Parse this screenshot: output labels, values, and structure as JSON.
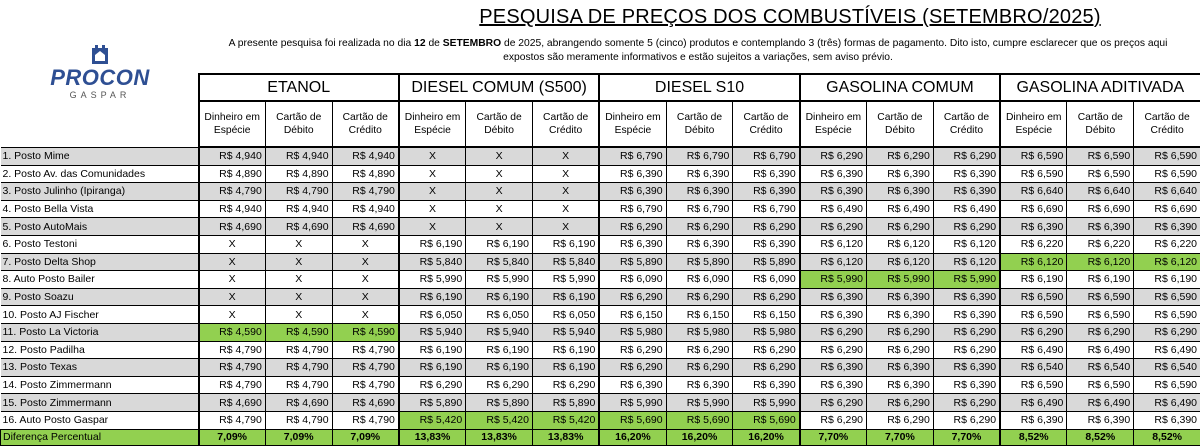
{
  "title": "PESQUISA DE PREÇOS DOS COMBUSTÍVEIS (SETEMBRO/2025)",
  "intro_line1_pre": "A presente pesquisa foi realizada no dia ",
  "intro_day": "12",
  "intro_mid": " de ",
  "intro_month": "SETEMBRO",
  "intro_line1_post": " de 2025, abrangendo somente 5 (cinco) produtos e contemplando 3 (três) formas de pagamento. Dito isto, cumpre esclarecer que os preços aqui",
  "intro_line2": "expostos são meramente informativos e estão sujeitos a variações, sem aviso prévio.",
  "logo": {
    "name": "PROCON",
    "city": "GASPAR"
  },
  "fuels": [
    "ETANOL",
    "DIESEL COMUM (S500)",
    "DIESEL S10",
    "GASOLINA COMUM",
    "GASOLINA ADITIVADA"
  ],
  "payment_line1": [
    "Dinheiro em",
    "Cartão de",
    "Cartão de"
  ],
  "payment_line2": [
    "Espécie",
    "Débito",
    "Crédito"
  ],
  "rows": [
    {
      "name": "1. Posto Mime",
      "prices": [
        "R$ 4,940",
        "X",
        "R$ 6,790",
        "R$ 6,290",
        "R$ 6,590"
      ]
    },
    {
      "name": "2. Posto Av. das Comunidades",
      "prices": [
        "R$ 4,890",
        "X",
        "R$ 6,390",
        "R$ 6,390",
        "R$ 6,590"
      ]
    },
    {
      "name": "3. Posto Julinho (Ipiranga)",
      "prices": [
        "R$ 4,790",
        "X",
        "R$ 6,390",
        "R$ 6,390",
        "R$ 6,640"
      ]
    },
    {
      "name": "4. Posto Bella Vista",
      "prices": [
        "R$ 4,940",
        "X",
        "R$ 6,790",
        "R$ 6,490",
        "R$ 6,690"
      ]
    },
    {
      "name": "5. Posto AutoMais",
      "prices": [
        "R$ 4,690",
        "X",
        "R$ 6,290",
        "R$ 6,290",
        "R$ 6,390"
      ]
    },
    {
      "name": "6. Posto Testoni",
      "prices": [
        "X",
        "R$ 6,190",
        "R$ 6,390",
        "R$ 6,120",
        "R$ 6,220"
      ]
    },
    {
      "name": "7. Posto Delta Shop",
      "prices": [
        "X",
        "R$ 5,840",
        "R$ 5,890",
        "R$ 6,120",
        "R$ 6,120"
      ]
    },
    {
      "name": "8. Auto Posto Bailer",
      "prices": [
        "X",
        "R$ 5,990",
        "R$ 6,090",
        "R$ 5,990",
        "R$ 6,190"
      ]
    },
    {
      "name": "9. Posto Soazu",
      "prices": [
        "X",
        "R$ 6,190",
        "R$ 6,290",
        "R$ 6,390",
        "R$ 6,590"
      ]
    },
    {
      "name": "10. Posto AJ Fischer",
      "prices": [
        "X",
        "R$ 6,050",
        "R$ 6,150",
        "R$ 6,390",
        "R$ 6,590"
      ]
    },
    {
      "name": "11. Posto La Victoria",
      "prices": [
        "R$ 4,590",
        "R$ 5,940",
        "R$ 5,980",
        "R$ 6,290",
        "R$ 6,290"
      ]
    },
    {
      "name": "12. Posto Padilha",
      "prices": [
        "R$ 4,790",
        "R$ 6,190",
        "R$ 6,290",
        "R$ 6,290",
        "R$ 6,490"
      ]
    },
    {
      "name": "13. Posto Texas",
      "prices": [
        "R$ 4,790",
        "R$ 6,190",
        "R$ 6,290",
        "R$ 6,390",
        "R$ 6,540"
      ]
    },
    {
      "name": "14. Posto Zimmermann",
      "prices": [
        "R$ 4,790",
        "R$ 6,290",
        "R$ 6,390",
        "R$ 6,390",
        "R$ 6,590"
      ]
    },
    {
      "name": "15. Posto Zimmermann",
      "prices": [
        "R$ 4,690",
        "R$ 5,890",
        "R$ 5,990",
        "R$ 6,290",
        "R$ 6,490"
      ]
    },
    {
      "name": "16. Auto Posto Gaspar",
      "prices": [
        "R$ 4,790",
        "R$ 5,420",
        "R$ 5,690",
        "R$ 6,290",
        "R$ 6,390"
      ]
    }
  ],
  "lowest_price_rows": [
    [
      10
    ],
    [
      15
    ],
    [
      15
    ],
    [
      7
    ],
    [
      6
    ]
  ],
  "footer_label": "Diferença Percentual",
  "footer_values": [
    "7,09%",
    "13,83%",
    "16,20%",
    "7,70%",
    "8,52%"
  ],
  "colors": {
    "highlight": "#92d050",
    "shade": "#d9d9d9",
    "brand": "#2e4f93"
  }
}
